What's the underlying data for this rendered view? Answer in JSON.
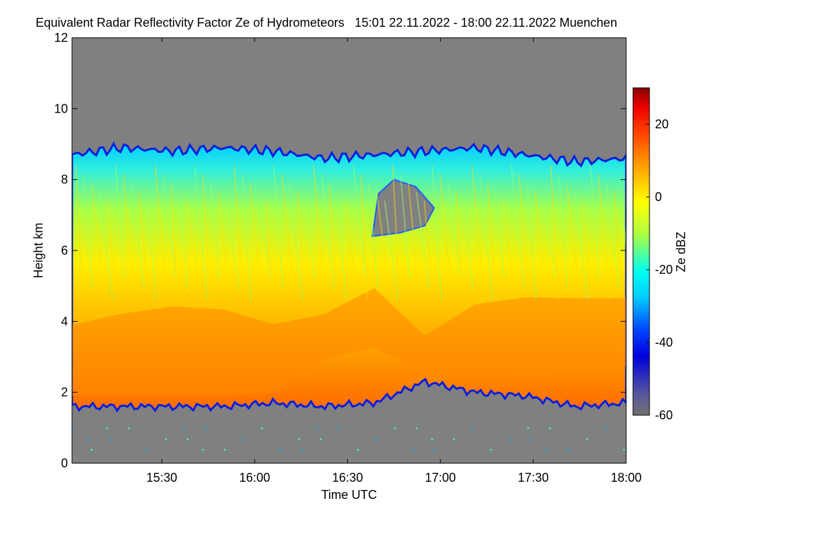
{
  "chart_data": {
    "type": "heatmap",
    "title": "Equivalent Radar Reflectivity Factor Ze of Hydrometeors   15:01 22.11.2022 - 18:00 22.11.2022 Muenchen",
    "xlabel": "Time UTC",
    "ylabel": "Height km",
    "colorbar_label": "Ze dBZ",
    "x_range": [
      "15:01",
      "18:00"
    ],
    "x_ticks": [
      "15:30",
      "16:00",
      "16:30",
      "17:00",
      "17:30",
      "18:00"
    ],
    "y_range": [
      0,
      12
    ],
    "y_ticks": [
      "0",
      "2",
      "4",
      "6",
      "8",
      "10",
      "12"
    ],
    "colorbar_range": [
      -60,
      30
    ],
    "colorbar_ticks": [
      "20",
      "0",
      "-20",
      "-40",
      "-60"
    ],
    "colors": {
      "no_data": "#808080",
      "colormap": [
        "#6a6a8a",
        "#0000cc",
        "#0033ff",
        "#00aaff",
        "#00ffff",
        "#66ff99",
        "#ccff33",
        "#ffff00",
        "#ffaa00",
        "#ff5500",
        "#ff0000",
        "#990000"
      ]
    },
    "cloud_structure": {
      "cloud_top_km": [
        8.7,
        8.9,
        8.8,
        8.9,
        8.8,
        8.6,
        8.7,
        8.8,
        8.9,
        8.7,
        8.5,
        8.6
      ],
      "cloud_base_km": [
        1.6,
        1.6,
        1.6,
        1.6,
        1.7,
        1.6,
        1.7,
        2.3,
        2.0,
        1.9,
        1.6,
        1.7
      ],
      "peak_reflectivity_height_km": [
        2.6,
        2.8,
        3.0,
        2.8,
        2.5,
        3.5,
        4.0,
        2.9,
        3.3,
        3.5,
        3.6,
        3.6
      ],
      "peak_reflectivity_dBZ": [
        5,
        6,
        6,
        7,
        6,
        0,
        2,
        0,
        4,
        4,
        3,
        3
      ]
    }
  }
}
